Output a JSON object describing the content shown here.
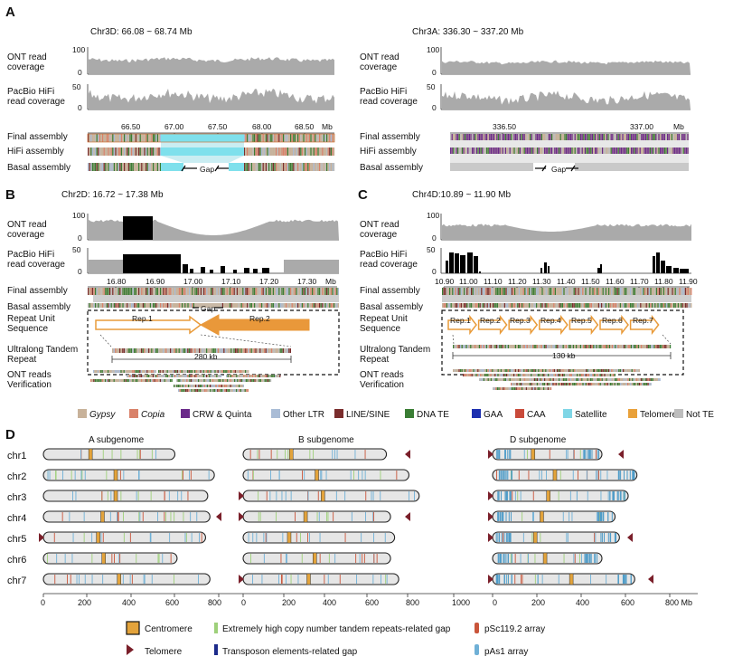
{
  "panels": {
    "A_left": {
      "label": "A",
      "header": "Chr3D: 66.08 ~ 68.74 Mb",
      "ont_label": [
        "ONT read",
        "coverage"
      ],
      "ont_max": "100",
      "hifi_label": [
        "PacBio HiFi",
        "read coverage"
      ],
      "hifi_max": "50",
      "zero": "0",
      "ticks": [
        "66.50",
        "67.00",
        "67.50",
        "68.00",
        "68.50"
      ],
      "unit": "Mb",
      "tracks": [
        "Final assembly",
        "HiFi assembly",
        "Basal assembly"
      ],
      "gap": "Gap"
    },
    "A_right": {
      "header": "Chr3A: 336.30 ~ 337.20 Mb",
      "ont_label": [
        "ONT read",
        "coverage"
      ],
      "ont_max": "100",
      "hifi_label": [
        "PacBio HiFi",
        "read coverage"
      ],
      "hifi_max": "50",
      "zero": "0",
      "ticks": [
        "336.50",
        "337.00"
      ],
      "unit": "Mb",
      "tracks": [
        "Final assembly",
        "HiFi assembly",
        "Basal assembly"
      ],
      "gap": "Gap"
    },
    "B": {
      "label": "B",
      "header": "Chr2D: 16.72 ~ 17.38 Mb",
      "ont_label": [
        "ONT read",
        "coverage"
      ],
      "ont_max": "100",
      "hifi_label": [
        "PacBio HiFi",
        "read coverage"
      ],
      "hifi_max": "50",
      "zero": "0",
      "ticks": [
        "16.80",
        "16.90",
        "17.00",
        "17.10",
        "17.20",
        "17.30"
      ],
      "unit": "Mb",
      "tracks": [
        "Final assembly",
        "Basal assembly"
      ],
      "repeat_label": [
        "Repeat Unit",
        "Sequence"
      ],
      "ultra_label": [
        "Ultralong Tandem",
        "Repeat"
      ],
      "ontv_label": [
        "ONT reads",
        "Verification"
      ],
      "gap": "Gap",
      "reps": [
        "Rep.1",
        "Rep.2"
      ],
      "span": "280 kb"
    },
    "C": {
      "label": "C",
      "header": "Chr4D:10.89 ~ 11.90 Mb",
      "ont_label": [
        "ONT read",
        "coverage"
      ],
      "ont_max": "100",
      "hifi_label": [
        "PacBio HiFi",
        "read coverage"
      ],
      "hifi_max": "50",
      "zero": "0",
      "ticks": [
        "10.90",
        "11.00",
        "11.10",
        "11.20",
        "11.30",
        "11.40",
        "11.50",
        "11.60",
        "11.70",
        "11.80",
        "11.90"
      ],
      "unit": "Mb",
      "tracks": [
        "Final assembly",
        "Basal assembly"
      ],
      "repeat_label": [
        "Repeat Unit",
        "Sequence"
      ],
      "ultra_label": [
        "Ultralong Tandem",
        "Repeat"
      ],
      "ontv_label": [
        "ONT reads",
        "Verification"
      ],
      "reps": [
        "Rep.1",
        "Rep.2",
        "Rep.3",
        "Rep.4",
        "Rep.5",
        "Rep.6",
        "Rep.7"
      ],
      "span": "130 kb"
    },
    "D": {
      "label": "D",
      "subgenomes": [
        "A subgenome",
        "B subgenome",
        "D subgenome"
      ],
      "chromosomes": [
        "chr1",
        "chr2",
        "chr3",
        "chr4",
        "chr5",
        "chr6",
        "chr7"
      ],
      "axis_A": [
        "0",
        "200",
        "400",
        "600",
        "800"
      ],
      "axis_B": [
        "0",
        "200",
        "400",
        "600",
        "800",
        "1000"
      ],
      "axis_D": [
        "0",
        "200",
        "400",
        "600",
        "800 Mb"
      ]
    }
  },
  "te_legend": [
    {
      "label": "Gypsy",
      "color": "#c8b29a",
      "italic": true
    },
    {
      "label": "Copia",
      "color": "#d9826a",
      "italic": true
    },
    {
      "label": "CRW & Quinta",
      "color": "#6b2a8a",
      "italic": false
    },
    {
      "label": "Other LTR",
      "color": "#a9bcd6",
      "italic": false
    },
    {
      "label": "LINE/SINE",
      "color": "#7a2d2d",
      "italic": false
    },
    {
      "label": "DNA TE",
      "color": "#3a7d34",
      "italic": false
    },
    {
      "label": "GAA",
      "color": "#1c2fb0",
      "italic": false
    },
    {
      "label": "CAA",
      "color": "#c94a3a",
      "italic": false
    },
    {
      "label": "Satellite",
      "color": "#7fd6e6",
      "italic": false
    },
    {
      "label": "Telomere",
      "color": "#e9a13a",
      "italic": false
    },
    {
      "label": "Not TE",
      "color": "#bdbdbd",
      "italic": false
    }
  ],
  "d_legend": [
    {
      "label": "Centromere",
      "color": "#e3a33b"
    },
    {
      "label": "Extremely high copy number tandem repeats-related gap",
      "color": "#9ed07a"
    },
    {
      "label": "pSc119.2 array",
      "color": "#c9553a"
    },
    {
      "label": "Telomere",
      "color": "#7a1f2a"
    },
    {
      "label": "Transposon elements-related gap",
      "color": "#1c2a8a"
    },
    {
      "label": "pAs1 array",
      "color": "#6fb0d6"
    }
  ],
  "chromosome_lengths_mb": {
    "A": [
      600,
      780,
      750,
      760,
      740,
      610,
      760
    ],
    "B": [
      700,
      810,
      860,
      720,
      740,
      720,
      760
    ],
    "D": [
      500,
      660,
      620,
      560,
      580,
      500,
      650
    ]
  },
  "centromere_mb": {
    "A": [
      215,
      330,
      330,
      270,
      250,
      275,
      345
    ],
    "B": [
      235,
      360,
      390,
      305,
      225,
      350,
      320
    ],
    "D": [
      185,
      285,
      255,
      225,
      195,
      240,
      360
    ]
  }
}
